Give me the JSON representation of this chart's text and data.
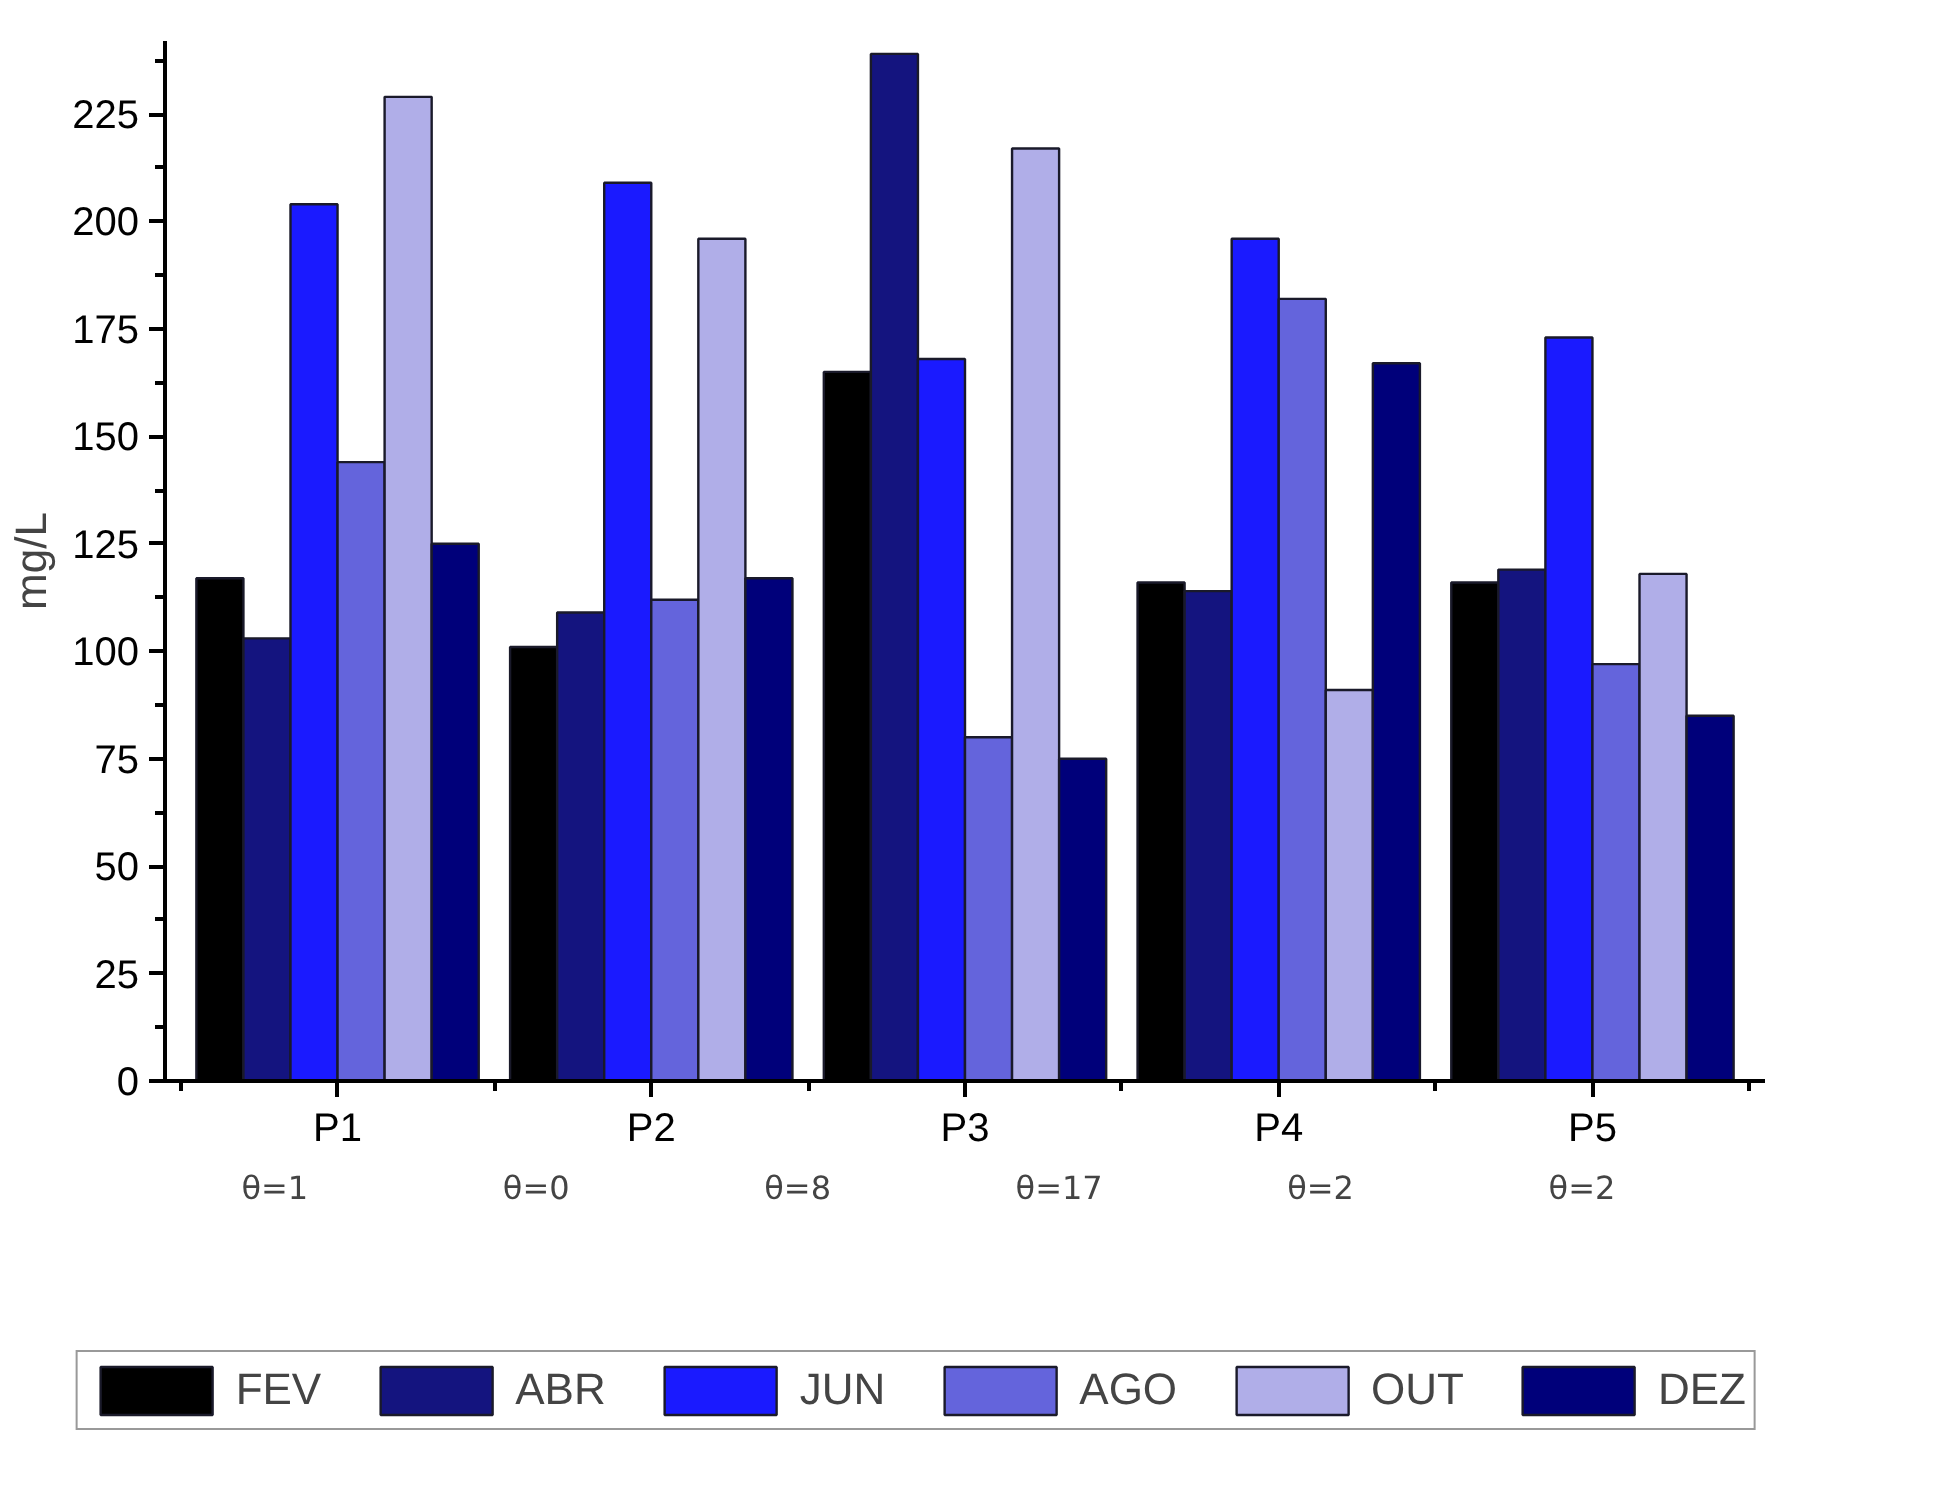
{
  "chart_data": {
    "type": "bar",
    "ylabel": "mg/L",
    "categories": [
      "P1",
      "P2",
      "P3",
      "P4",
      "P5"
    ],
    "series": [
      {
        "name": "FEV",
        "color": "#000000",
        "values": [
          117,
          101,
          165,
          116,
          116
        ]
      },
      {
        "name": "ABR",
        "color": "#14147f",
        "values": [
          103,
          109,
          239,
          114,
          119
        ]
      },
      {
        "name": "JUN",
        "color": "#1a1aff",
        "values": [
          204,
          209,
          168,
          196,
          173
        ]
      },
      {
        "name": "AGO",
        "color": "#6464dc",
        "values": [
          144,
          112,
          80,
          182,
          97
        ]
      },
      {
        "name": "OUT",
        "color": "#b0aee8",
        "values": [
          229,
          196,
          217,
          91,
          118
        ]
      },
      {
        "name": "DEZ",
        "color": "#00007a",
        "values": [
          125,
          117,
          75,
          167,
          85
        ]
      }
    ],
    "ylim": [
      0,
      242
    ],
    "yticks": [
      0,
      25,
      50,
      75,
      100,
      125,
      150,
      175,
      200,
      225
    ],
    "annotations": [
      "θ=1",
      "θ=0",
      "θ=8",
      "θ=17",
      "θ=2",
      "θ=2"
    ],
    "grid": false,
    "legend": "bottom"
  }
}
